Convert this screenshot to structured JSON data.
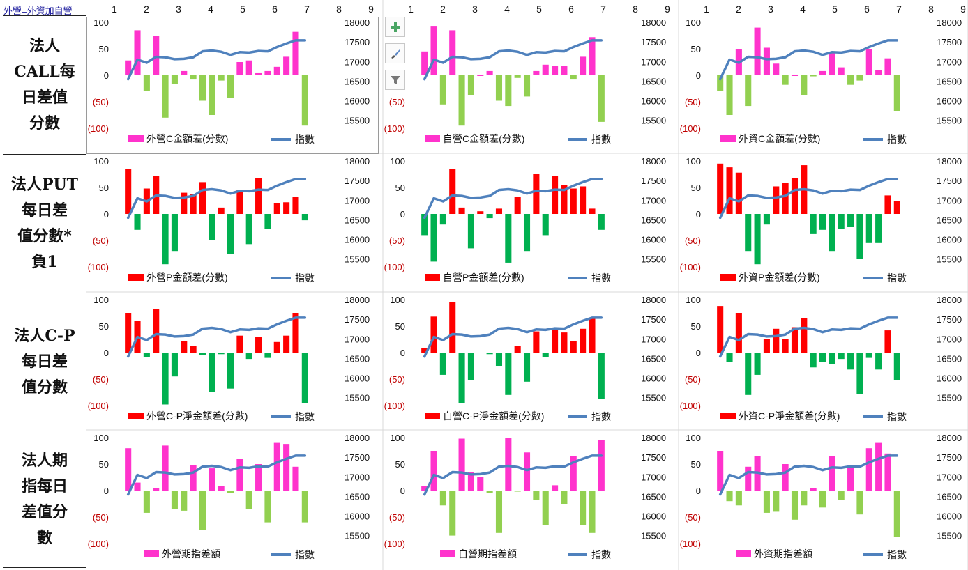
{
  "toplink": "外營=外資加自營",
  "column_numbers": [
    "1",
    "2",
    "3",
    "4",
    "5",
    "6",
    "7",
    "8",
    "9"
  ],
  "row_labels": [
    "法人\nCALL每\n日差值\n分數",
    "法人PUT\n每日差\n值分數*\n負1",
    "法人C-P\n每日差\n值分數",
    "法人期\n指每日\n差值分\n數"
  ],
  "toolbar_icons": [
    "plus-icon",
    "brush-icon",
    "filter-icon"
  ],
  "colors": {
    "magenta": "#ff33cc",
    "lime": "#92d050",
    "red": "#ff0000",
    "green": "#00b050",
    "index_line": "#4f81bd",
    "negative_label": "#c00000"
  },
  "chart_data": [
    {
      "type": "bar",
      "bar_colors": "magenta_lime",
      "series": [
        {
          "name": "外營C金額差(分數)",
          "values": [
            28,
            85,
            -30,
            75,
            -80,
            -16,
            8,
            -8,
            -48,
            -75,
            -10,
            -43,
            25,
            28,
            4,
            8,
            16,
            35,
            82,
            -95
          ]
        },
        {
          "name": "指數",
          "values": [
            16550,
            17050,
            16970,
            17120,
            17110,
            17060,
            17070,
            17110,
            17260,
            17280,
            17250,
            17170,
            17240,
            17230,
            17270,
            17260,
            17370,
            17460,
            17540,
            17540
          ]
        }
      ],
      "yticks_left": [
        "100",
        "50",
        "0",
        "(50)",
        "(100)"
      ],
      "yticks_right": [
        "18000",
        "17500",
        "17000",
        "16500",
        "16000",
        "15500"
      ],
      "xticks": [
        "1",
        "2",
        "3",
        "4",
        "5",
        "6",
        "7",
        "8",
        "9"
      ],
      "ylim": [
        -100,
        100
      ],
      "y2lim": [
        15300,
        18000
      ]
    },
    {
      "type": "bar",
      "bar_colors": "magenta_lime",
      "series": [
        {
          "name": "自營C金額差(分數)",
          "values": [
            45,
            92,
            -55,
            85,
            -95,
            -38,
            0,
            8,
            -48,
            -58,
            -5,
            -40,
            8,
            20,
            18,
            18,
            -8,
            35,
            72,
            -88
          ]
        },
        {
          "name": "指數",
          "values": [
            16550,
            17050,
            16970,
            17120,
            17110,
            17060,
            17070,
            17110,
            17260,
            17280,
            17250,
            17170,
            17240,
            17230,
            17270,
            17260,
            17370,
            17460,
            17540,
            17540
          ]
        }
      ],
      "yticks_left": [
        "100",
        "50",
        "0",
        "(50)",
        "(100)"
      ],
      "yticks_right": [
        "18000",
        "17500",
        "17000",
        "16500",
        "16000",
        "15500"
      ],
      "xticks": [
        "1",
        "2",
        "3",
        "4",
        "5",
        "6",
        "7",
        "8",
        "9"
      ],
      "ylim": [
        -100,
        100
      ],
      "y2lim": [
        15300,
        18000
      ]
    },
    {
      "type": "bar",
      "bar_colors": "magenta_lime",
      "series": [
        {
          "name": "外資C金額差(分數)",
          "values": [
            -30,
            -75,
            50,
            -58,
            90,
            52,
            22,
            -18,
            0,
            -38,
            -2,
            8,
            42,
            15,
            -18,
            -10,
            50,
            10,
            32,
            -68
          ]
        },
        {
          "name": "指數",
          "values": [
            16550,
            17050,
            16970,
            17120,
            17110,
            17060,
            17070,
            17110,
            17260,
            17280,
            17250,
            17170,
            17240,
            17230,
            17270,
            17260,
            17370,
            17460,
            17540,
            17540
          ]
        }
      ],
      "yticks_left": [
        "100",
        "50",
        "0",
        "(50)",
        "(100)"
      ],
      "yticks_right": [
        "18000",
        "17500",
        "17000",
        "16500",
        "16000",
        "15500"
      ],
      "xticks": [
        "1",
        "2",
        "3",
        "4",
        "5",
        "6",
        "7",
        "8",
        "9"
      ],
      "ylim": [
        -100,
        100
      ],
      "y2lim": [
        15300,
        18000
      ]
    },
    {
      "type": "bar",
      "bar_colors": "red_green",
      "series": [
        {
          "name": "外營P金額差(分數)",
          "values": [
            85,
            -30,
            48,
            72,
            -95,
            -70,
            40,
            38,
            60,
            -50,
            12,
            -75,
            45,
            -57,
            68,
            -28,
            20,
            22,
            32,
            -12
          ]
        },
        {
          "name": "指數",
          "values": [
            16550,
            17050,
            16970,
            17120,
            17110,
            17060,
            17070,
            17110,
            17260,
            17280,
            17250,
            17170,
            17240,
            17230,
            17270,
            17260,
            17370,
            17460,
            17540,
            17540
          ]
        }
      ],
      "yticks_left": [
        "100",
        "50",
        "0",
        "(50)",
        "(100)"
      ],
      "yticks_right": [
        "18000",
        "17500",
        "17000",
        "16500",
        "16000",
        "15500"
      ],
      "xticks": [
        "1",
        "2",
        "3",
        "4",
        "5",
        "6",
        "7",
        "8",
        "9"
      ],
      "ylim": [
        -100,
        100
      ],
      "y2lim": [
        15300,
        18000
      ]
    },
    {
      "type": "bar",
      "bar_colors": "red_green",
      "series": [
        {
          "name": "自營P金額差(分數)",
          "values": [
            -40,
            -90,
            -20,
            85,
            12,
            -65,
            5,
            -8,
            10,
            -92,
            32,
            -70,
            75,
            -40,
            72,
            55,
            48,
            52,
            10,
            -30
          ]
        },
        {
          "name": "指數",
          "values": [
            16550,
            17050,
            16970,
            17120,
            17110,
            17060,
            17070,
            17110,
            17260,
            17280,
            17250,
            17170,
            17240,
            17230,
            17270,
            17260,
            17370,
            17460,
            17540,
            17540
          ]
        }
      ],
      "yticks_left": [
        "100",
        "50",
        "0",
        "(50)",
        "(100)"
      ],
      "yticks_right": [
        "18000",
        "17500",
        "17000",
        "16500",
        "16000",
        "15500"
      ],
      "xticks": [
        "1",
        "2",
        "3",
        "4",
        "5",
        "6",
        "7",
        "8",
        "9"
      ],
      "ylim": [
        -100,
        100
      ],
      "y2lim": [
        15300,
        18000
      ]
    },
    {
      "type": "bar",
      "bar_colors": "red_green",
      "series": [
        {
          "name": "外資P金額差(分數)",
          "values": [
            95,
            88,
            78,
            -70,
            -95,
            -20,
            52,
            58,
            68,
            92,
            -38,
            -30,
            -70,
            -28,
            -25,
            -85,
            -55,
            -55,
            35,
            25
          ]
        },
        {
          "name": "指數",
          "values": [
            16550,
            17050,
            16970,
            17120,
            17110,
            17060,
            17070,
            17110,
            17260,
            17280,
            17250,
            17170,
            17240,
            17230,
            17270,
            17260,
            17370,
            17460,
            17540,
            17540
          ]
        }
      ],
      "yticks_left": [
        "100",
        "50",
        "0",
        "(50)",
        "(100)"
      ],
      "yticks_right": [
        "18000",
        "17500",
        "17000",
        "16500",
        "16000",
        "15500"
      ],
      "xticks": [
        "1",
        "2",
        "3",
        "4",
        "5",
        "6",
        "7",
        "8",
        "9"
      ],
      "ylim": [
        -100,
        100
      ],
      "y2lim": [
        15300,
        18000
      ]
    },
    {
      "type": "bar",
      "bar_colors": "red_green",
      "series": [
        {
          "name": "外營C-P淨金額差(分數)",
          "values": [
            75,
            60,
            -8,
            82,
            -98,
            -45,
            22,
            12,
            -5,
            -75,
            -3,
            -68,
            32,
            -12,
            30,
            -10,
            20,
            32,
            75,
            -95
          ]
        },
        {
          "name": "指數",
          "values": [
            16550,
            17050,
            16970,
            17120,
            17110,
            17060,
            17070,
            17110,
            17260,
            17280,
            17250,
            17170,
            17240,
            17230,
            17270,
            17260,
            17370,
            17460,
            17540,
            17540
          ]
        }
      ],
      "yticks_left": [
        "100",
        "50",
        "0",
        "(50)",
        "(100)"
      ],
      "yticks_right": [
        "18000",
        "17500",
        "17000",
        "16500",
        "16000",
        "15500"
      ],
      "xticks": [
        "1",
        "2",
        "3",
        "4",
        "5",
        "6",
        "7",
        "8",
        "9"
      ],
      "ylim": [
        -100,
        100
      ],
      "y2lim": [
        15300,
        18000
      ]
    },
    {
      "type": "bar",
      "bar_colors": "red_green",
      "series": [
        {
          "name": "自營C-P淨金額差(分數)",
          "values": [
            8,
            68,
            -42,
            95,
            -95,
            -52,
            0,
            -3,
            -25,
            -80,
            12,
            -55,
            40,
            -8,
            45,
            38,
            22,
            45,
            65,
            -88
          ]
        },
        {
          "name": "指數",
          "values": [
            16550,
            17050,
            16970,
            17120,
            17110,
            17060,
            17070,
            17110,
            17260,
            17280,
            17250,
            17170,
            17240,
            17230,
            17270,
            17260,
            17370,
            17460,
            17540,
            17540
          ]
        }
      ],
      "yticks_left": [
        "100",
        "50",
        "0",
        "(50)",
        "(100)"
      ],
      "yticks_right": [
        "18000",
        "17500",
        "17000",
        "16500",
        "16000",
        "15500"
      ],
      "xticks": [
        "1",
        "2",
        "3",
        "4",
        "5",
        "6",
        "7",
        "8",
        "9"
      ],
      "ylim": [
        -100,
        100
      ],
      "y2lim": [
        15300,
        18000
      ]
    },
    {
      "type": "bar",
      "bar_colors": "red_green",
      "series": [
        {
          "name": "外資C-P淨金額差(分數)",
          "values": [
            88,
            -18,
            75,
            -80,
            -42,
            25,
            45,
            25,
            48,
            65,
            -28,
            -18,
            -22,
            -12,
            -32,
            -78,
            -10,
            -32,
            42,
            -52
          ]
        },
        {
          "name": "指數",
          "values": [
            16550,
            17050,
            16970,
            17120,
            17110,
            17060,
            17070,
            17110,
            17260,
            17280,
            17250,
            17170,
            17240,
            17230,
            17270,
            17260,
            17370,
            17460,
            17540,
            17540
          ]
        }
      ],
      "yticks_left": [
        "100",
        "50",
        "0",
        "(50)",
        "(100)"
      ],
      "yticks_right": [
        "18000",
        "17500",
        "17000",
        "16500",
        "16000",
        "15500"
      ],
      "xticks": [
        "1",
        "2",
        "3",
        "4",
        "5",
        "6",
        "7",
        "8",
        "9"
      ],
      "ylim": [
        -100,
        100
      ],
      "y2lim": [
        15300,
        18000
      ]
    },
    {
      "type": "bar",
      "bar_colors": "magenta_lime",
      "series": [
        {
          "name": "外營期指差額",
          "values": [
            80,
            15,
            -42,
            5,
            85,
            -35,
            -38,
            48,
            -75,
            42,
            8,
            -5,
            60,
            -35,
            50,
            -60,
            90,
            88,
            45,
            -60
          ]
        },
        {
          "name": "指數",
          "values": [
            16550,
            17050,
            16970,
            17120,
            17110,
            17060,
            17070,
            17110,
            17260,
            17280,
            17250,
            17170,
            17240,
            17230,
            17270,
            17260,
            17370,
            17460,
            17540,
            17540
          ]
        }
      ],
      "yticks_left": [
        "100",
        "50",
        "0",
        "(50)",
        "(100)"
      ],
      "yticks_right": [
        "18000",
        "17500",
        "17000",
        "16500",
        "16000",
        "15500"
      ],
      "xticks": [
        "1",
        "2",
        "3",
        "4",
        "5",
        "6",
        "7",
        "8",
        "9"
      ],
      "ylim": [
        -100,
        100
      ],
      "y2lim": [
        15300,
        18000
      ]
    },
    {
      "type": "bar",
      "bar_colors": "magenta_lime",
      "series": [
        {
          "name": "自營期指差額",
          "values": [
            8,
            75,
            -28,
            -85,
            98,
            35,
            25,
            -5,
            -80,
            100,
            -2,
            72,
            -18,
            -65,
            10,
            -25,
            65,
            -65,
            -80,
            95
          ]
        },
        {
          "name": "指數",
          "values": [
            16550,
            17050,
            16970,
            17120,
            17110,
            17060,
            17070,
            17110,
            17260,
            17280,
            17250,
            17170,
            17240,
            17230,
            17270,
            17260,
            17370,
            17460,
            17540,
            17540
          ]
        }
      ],
      "yticks_left": [
        "100",
        "50",
        "0",
        "(50)",
        "(100)"
      ],
      "yticks_right": [
        "18000",
        "17500",
        "17000",
        "16500",
        "16000",
        "15500"
      ],
      "xticks": [
        "1",
        "2",
        "3",
        "4",
        "5",
        "6",
        "7",
        "8",
        "9"
      ],
      "ylim": [
        -100,
        100
      ],
      "y2lim": [
        15300,
        18000
      ]
    },
    {
      "type": "bar",
      "bar_colors": "magenta_lime",
      "series": [
        {
          "name": "外資期指差額",
          "values": [
            75,
            -20,
            -28,
            45,
            65,
            -42,
            -40,
            50,
            -55,
            -28,
            5,
            -32,
            65,
            -18,
            45,
            -45,
            80,
            90,
            70,
            -88
          ]
        },
        {
          "name": "指數",
          "values": [
            16550,
            17050,
            16970,
            17120,
            17110,
            17060,
            17070,
            17110,
            17260,
            17280,
            17250,
            17170,
            17240,
            17230,
            17270,
            17260,
            17370,
            17460,
            17540,
            17540
          ]
        }
      ],
      "yticks_left": [
        "100",
        "50",
        "0",
        "(50)",
        "(100)"
      ],
      "yticks_right": [
        "18000",
        "17500",
        "17000",
        "16500",
        "16000",
        "15500"
      ],
      "xticks": [
        "1",
        "2",
        "3",
        "4",
        "5",
        "6",
        "7",
        "8",
        "9"
      ],
      "ylim": [
        -100,
        100
      ],
      "y2lim": [
        15300,
        18000
      ]
    }
  ]
}
